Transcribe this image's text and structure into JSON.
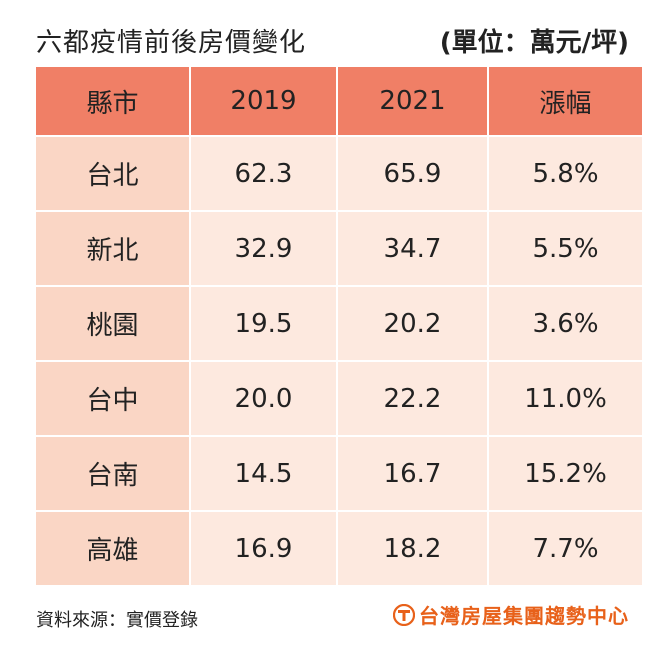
{
  "title": "六都疫情前後房價變化",
  "unit": "(單位：萬元/坪)",
  "chart_data": {
    "type": "table",
    "columns": [
      "縣市",
      "2019",
      "2021",
      "漲幅"
    ],
    "rows": [
      {
        "city": "台北",
        "y2019": "62.3",
        "y2021": "65.9",
        "rate": "5.8%"
      },
      {
        "city": "新北",
        "y2019": "32.9",
        "y2021": "34.7",
        "rate": "5.5%"
      },
      {
        "city": "桃園",
        "y2019": "19.5",
        "y2021": "20.2",
        "rate": "3.6%"
      },
      {
        "city": "台中",
        "y2019": "20.0",
        "y2021": "22.2",
        "rate": "11.0%"
      },
      {
        "city": "台南",
        "y2019": "14.5",
        "y2021": "16.7",
        "rate": "15.2%"
      },
      {
        "city": "高雄",
        "y2019": "16.9",
        "y2021": "18.2",
        "rate": "7.7%"
      }
    ]
  },
  "footer": {
    "source": "資料來源：實價登錄",
    "brand": "台灣房屋集團趨勢中心"
  },
  "colors": {
    "header_bg": "#f07f66",
    "city_cell_bg": "#fad6c5",
    "value_cell_bg": "#fde9df",
    "brand": "#e8611a"
  },
  "icons": {
    "brand_logo": "taiwan-realty-logo-icon"
  }
}
